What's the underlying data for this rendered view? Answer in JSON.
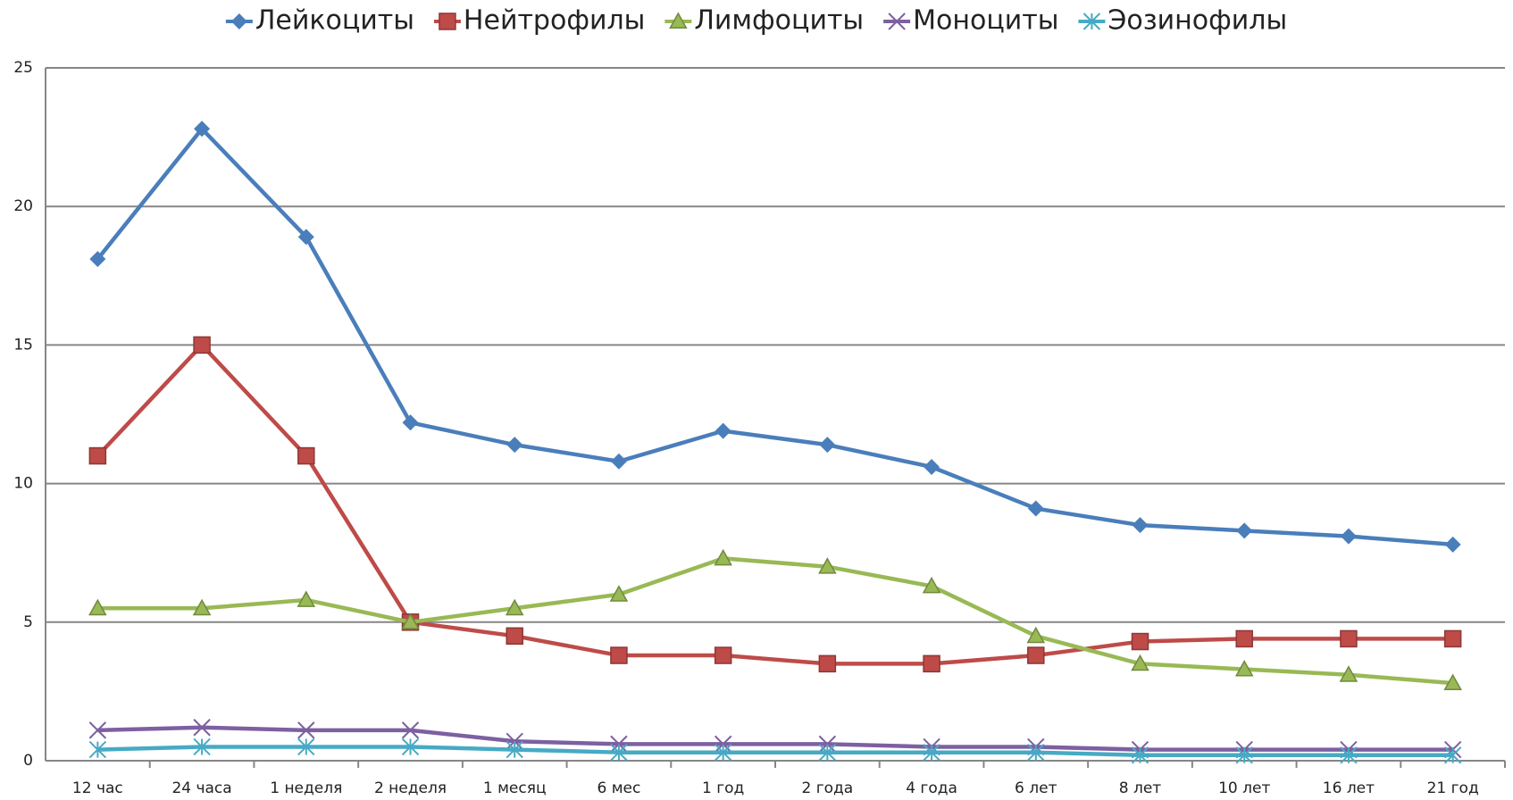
{
  "chart_data": {
    "type": "line",
    "categories": [
      "12 час",
      "24 часа",
      "1 неделя",
      "2 неделя",
      "1 месяц",
      "6 мес",
      "1 год",
      "2 года",
      "4 года",
      "6 лет",
      "8 лет",
      "10 лет",
      "16 лет",
      "21 год"
    ],
    "series": [
      {
        "name": "Лейкоциты",
        "color": "#4a7ebb",
        "marker": "diamond",
        "values": [
          18.1,
          22.8,
          18.9,
          12.2,
          11.4,
          10.8,
          11.9,
          11.4,
          10.6,
          9.1,
          8.5,
          8.3,
          8.1,
          7.8
        ]
      },
      {
        "name": "Нейтрофилы",
        "color": "#be4b48",
        "marker": "square",
        "values": [
          11,
          15,
          11,
          5,
          4.5,
          3.8,
          3.8,
          3.5,
          3.5,
          3.8,
          4.3,
          4.4,
          4.4,
          4.4
        ]
      },
      {
        "name": "Лимфоциты",
        "color": "#98b954",
        "marker": "triangle",
        "values": [
          5.5,
          5.5,
          5.8,
          5,
          5.5,
          6,
          7.3,
          7,
          6.3,
          4.5,
          3.5,
          3.3,
          3.1,
          2.8
        ]
      },
      {
        "name": "Моноциты",
        "color": "#7d60a0",
        "marker": "x",
        "values": [
          1.1,
          1.2,
          1.1,
          1.1,
          0.7,
          0.6,
          0.6,
          0.6,
          0.5,
          0.5,
          0.4,
          0.4,
          0.4,
          0.4
        ]
      },
      {
        "name": "Эозинофилы",
        "color": "#46aac5",
        "marker": "star",
        "values": [
          0.4,
          0.5,
          0.5,
          0.5,
          0.4,
          0.3,
          0.3,
          0.3,
          0.3,
          0.3,
          0.2,
          0.2,
          0.2,
          0.2
        ]
      }
    ],
    "ylim": [
      0,
      25
    ],
    "yticks": [
      0,
      5,
      10,
      15,
      20,
      25
    ],
    "grid": true,
    "legend": "top"
  }
}
